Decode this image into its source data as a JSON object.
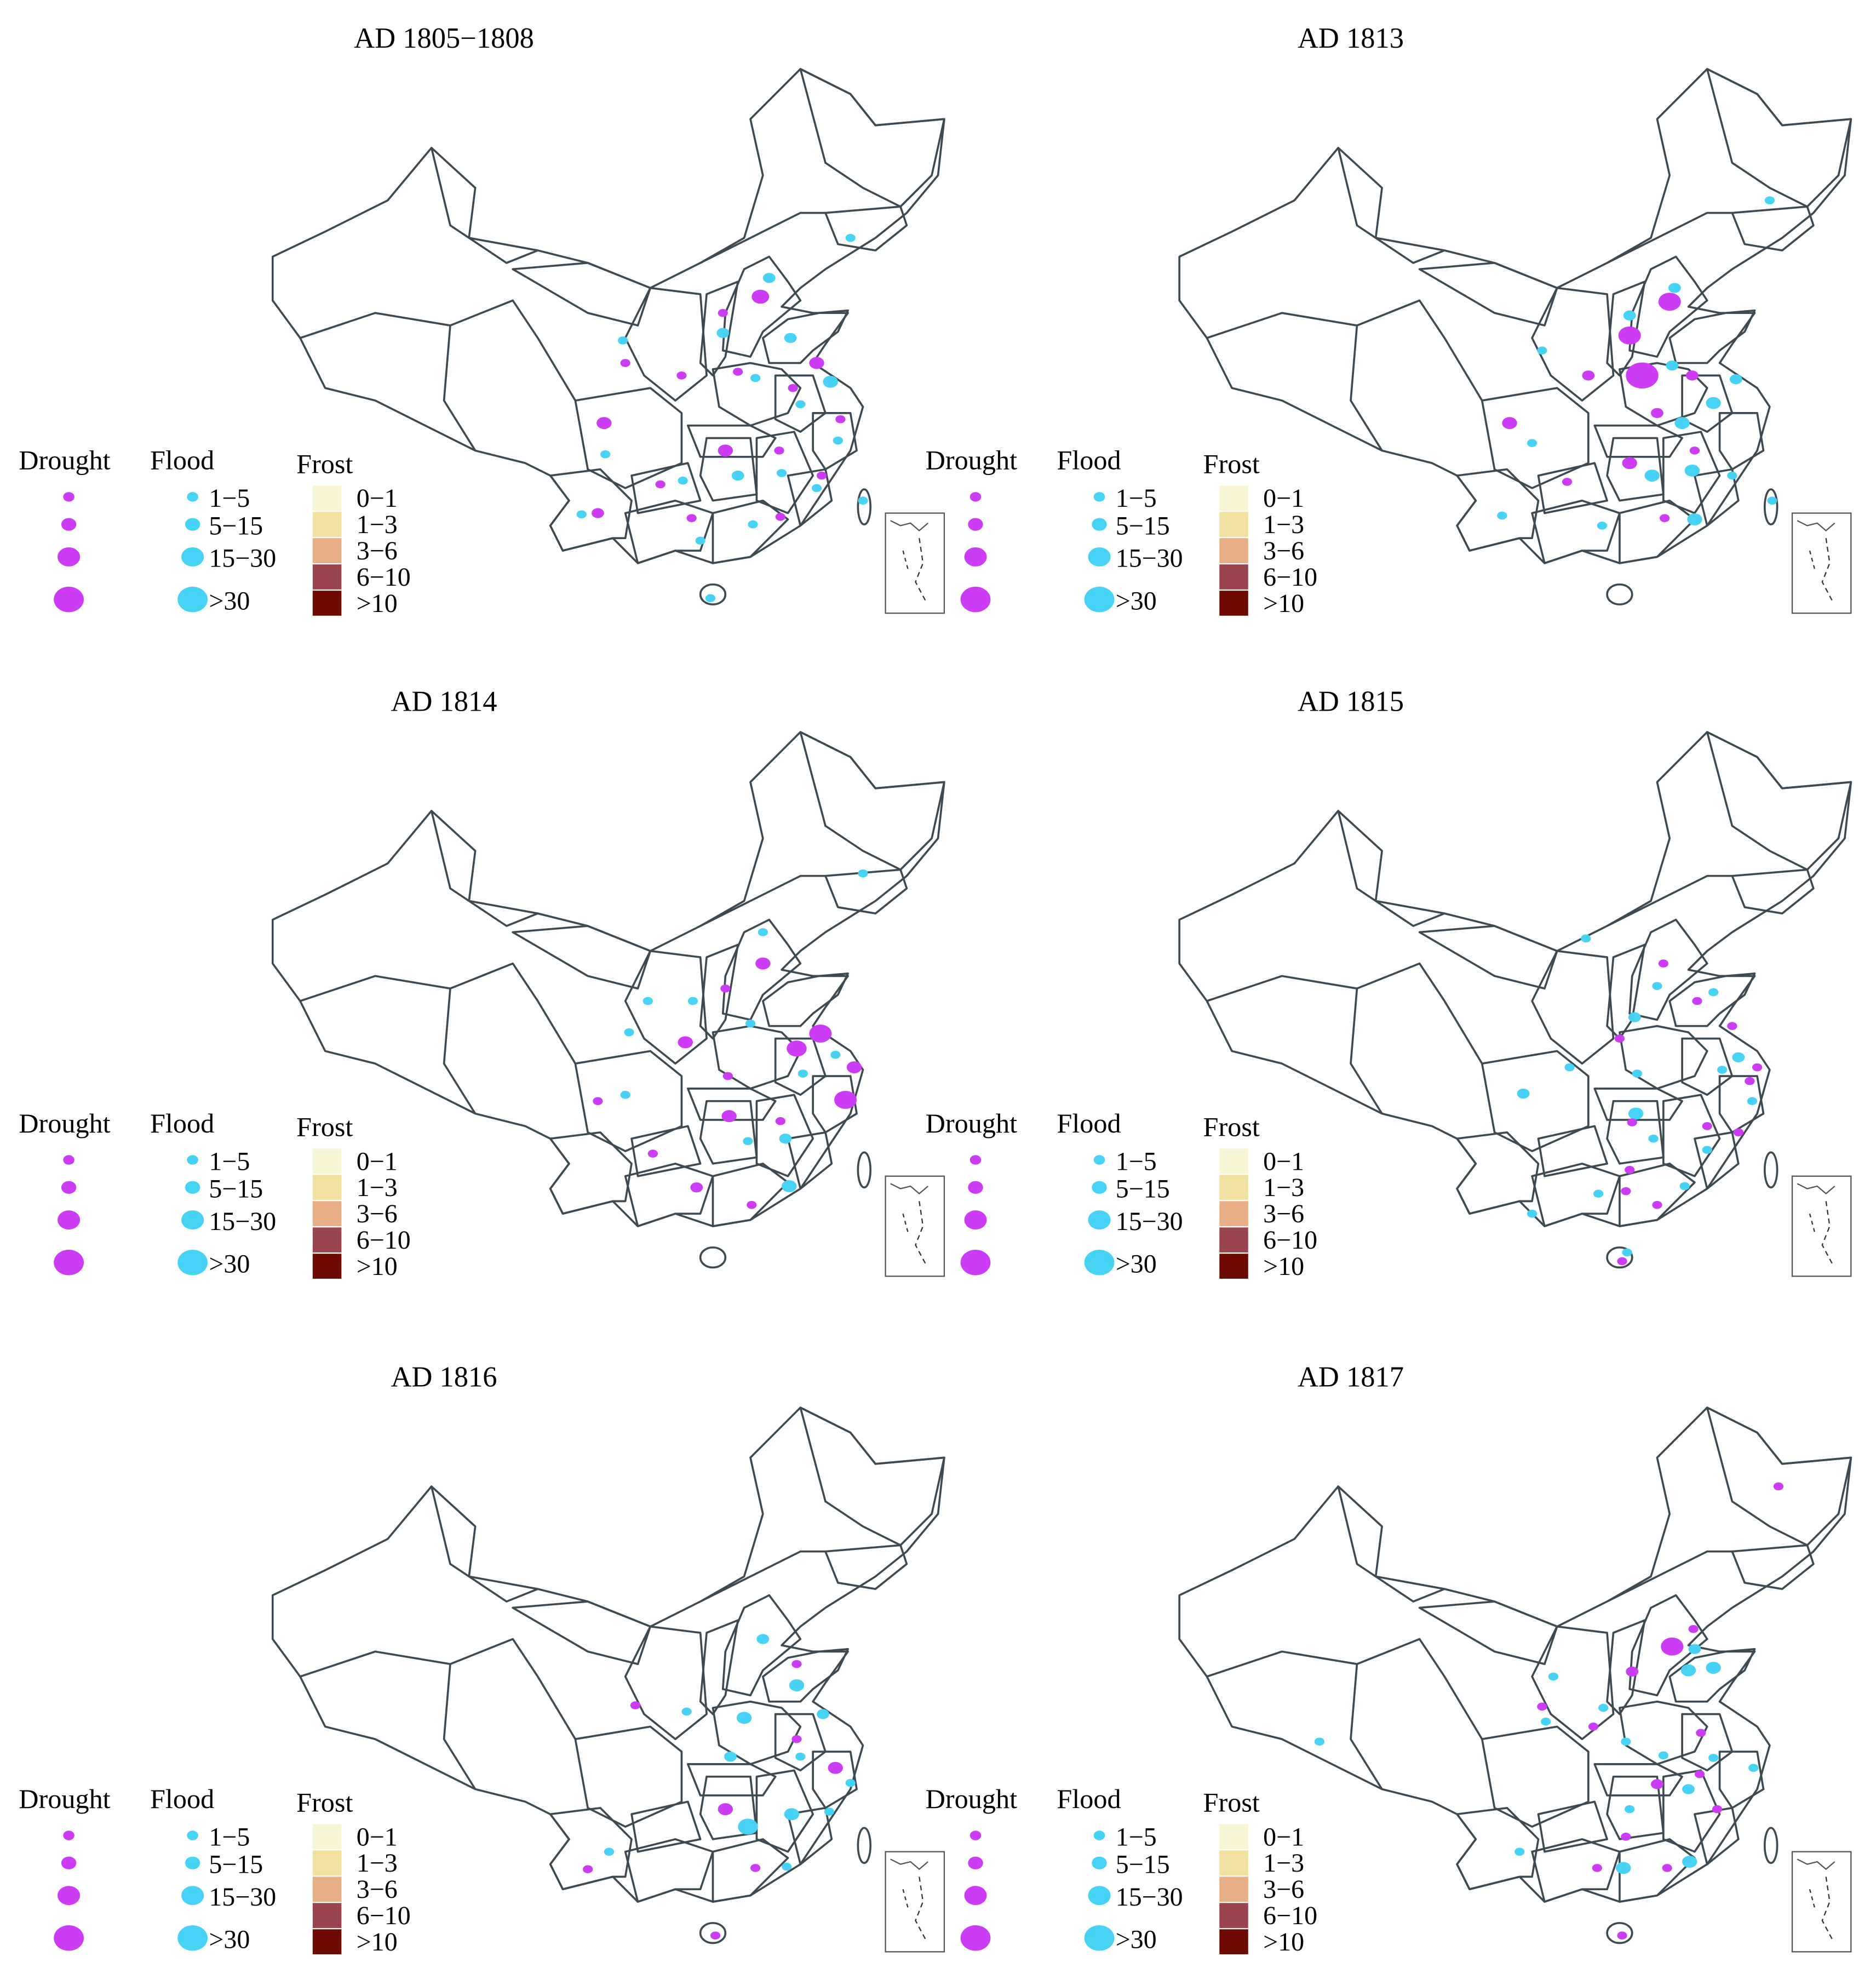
{
  "panels": [
    {
      "title": "AD 1805−1808"
    },
    {
      "title": "AD 1813"
    },
    {
      "title": "AD 1814"
    },
    {
      "title": "AD 1815"
    },
    {
      "title": "AD 1816"
    },
    {
      "title": "AD 1817"
    }
  ],
  "legend": {
    "drought_label": "Drought",
    "flood_label": "Flood",
    "frost_label": "Frost",
    "flood_classes": [
      "1−5",
      "5−15",
      "15−30",
      ">30"
    ],
    "frost_classes": [
      "0−1",
      "1−3",
      "3−6",
      "6−10",
      ">10"
    ]
  },
  "colors": {
    "drought": "#cc3cf5",
    "flood": "#46d2f5",
    "frost": [
      "#f8f5d2",
      "#f2e0a0",
      "#e8ae86",
      "#9a4450",
      "#6e0a00"
    ],
    "border": "#3d4a52"
  }
}
